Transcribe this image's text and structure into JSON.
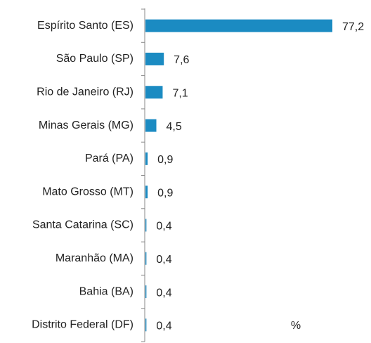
{
  "chart_data": {
    "type": "bar",
    "orientation": "horizontal",
    "categories": [
      "Espírito Santo (ES)",
      "São Paulo (SP)",
      "Rio de Janeiro (RJ)",
      "Minas Gerais (MG)",
      "Pará (PA)",
      "Mato Grosso (MT)",
      "Santa Catarina (SC)",
      "Maranhão (MA)",
      "Bahia (BA)",
      "Distrito Federal (DF)"
    ],
    "values": [
      77.2,
      7.6,
      7.1,
      4.5,
      0.9,
      0.9,
      0.4,
      0.4,
      0.4,
      0.4
    ],
    "value_labels": [
      "77,2",
      "7,6",
      "7,1",
      "4,5",
      "0,9",
      "0,9",
      "0,4",
      "0,4",
      "0,4",
      "0,4"
    ],
    "color": "#1b8bc2",
    "x_label": "%"
  }
}
